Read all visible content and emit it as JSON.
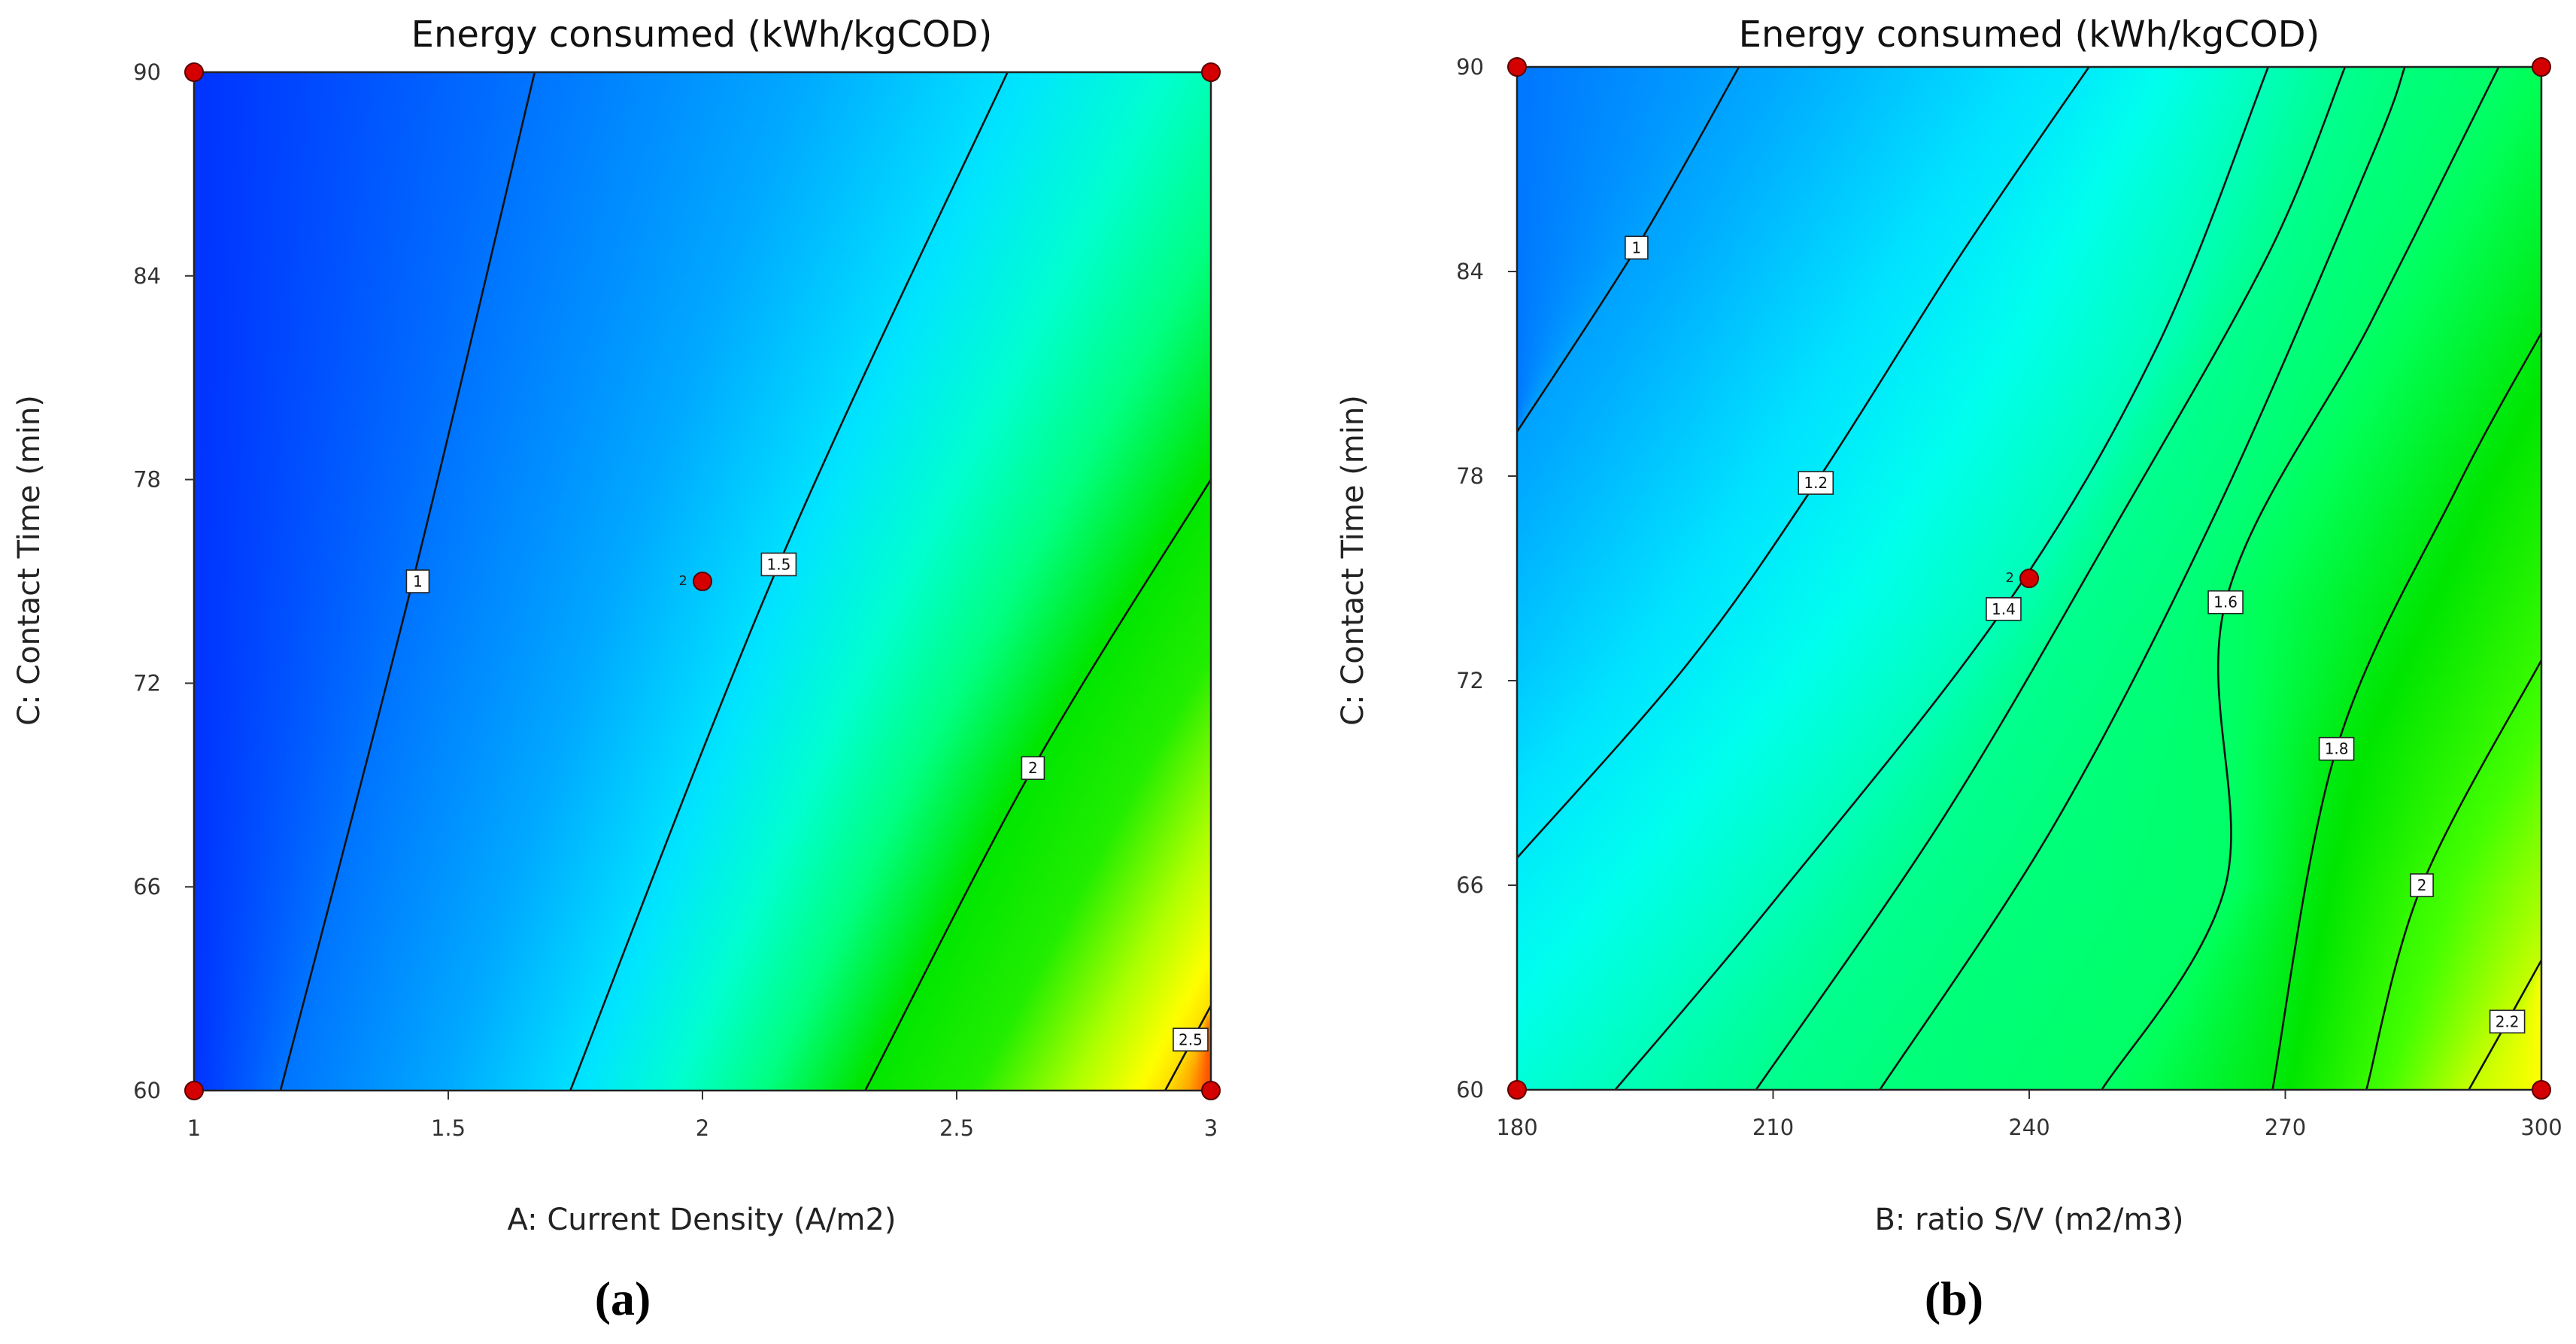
{
  "figure": {
    "panels": [
      {
        "label": "(a)"
      },
      {
        "label": "(b)"
      }
    ]
  },
  "chart_data": [
    {
      "type": "contour",
      "panel": "(a)",
      "title": "Energy consumed (kWh/kgCOD)",
      "xlabel": "A: Current Density (A/m2)",
      "ylabel": "C: Contact Time (min)",
      "xlim": [
        1,
        3
      ],
      "ylim": [
        60,
        90
      ],
      "xticks": [
        "1",
        "1.5",
        "2",
        "2.5",
        "3"
      ],
      "xtick_values": [
        1,
        1.5,
        2,
        2.5,
        3
      ],
      "yticks": [
        "60",
        "66",
        "72",
        "78",
        "84",
        "90"
      ],
      "ytick_values": [
        60,
        66,
        72,
        78,
        84,
        90
      ],
      "colormap_range": [
        0.7,
        2.65
      ],
      "colormap": [
        {
          "v": 0.0,
          "c": "#0033ff"
        },
        {
          "v": 0.16,
          "c": "#0077ff"
        },
        {
          "v": 0.3,
          "c": "#00aaff"
        },
        {
          "v": 0.42,
          "c": "#00e5ff"
        },
        {
          "v": 0.5,
          "c": "#00ffd0"
        },
        {
          "v": 0.58,
          "c": "#00ff80"
        },
        {
          "v": 0.66,
          "c": "#00e600"
        },
        {
          "v": 0.76,
          "c": "#22ee00"
        },
        {
          "v": 0.84,
          "c": "#aaff00"
        },
        {
          "v": 0.9,
          "c": "#ffff00"
        },
        {
          "v": 0.96,
          "c": "#ffaa00"
        },
        {
          "v": 1.0,
          "c": "#ff4400"
        }
      ],
      "contours": [
        {
          "level": 1,
          "label": "1",
          "points": [
            [
              1.17,
              60
            ],
            [
              1.43,
              75
            ],
            [
              1.67,
              90
            ]
          ],
          "label_at": [
            1.44,
            75
          ]
        },
        {
          "level": 1.5,
          "label": "1.5",
          "points": [
            [
              1.74,
              60
            ],
            [
              2.15,
              75.5
            ],
            [
              2.6,
              90
            ]
          ],
          "label_at": [
            2.15,
            75.5
          ]
        },
        {
          "level": 2,
          "label": "2",
          "points": [
            [
              2.32,
              60
            ],
            [
              2.65,
              69.5
            ],
            [
              3.0,
              78
            ]
          ],
          "label_at": [
            2.65,
            69.5
          ]
        },
        {
          "level": 2.5,
          "label": "2.5",
          "points": [
            [
              2.91,
              60
            ],
            [
              3.0,
              62.5
            ]
          ],
          "label_at": [
            2.96,
            61.5
          ]
        }
      ],
      "design_points": [
        [
          1,
          60
        ],
        [
          1,
          90
        ],
        [
          3,
          60
        ],
        [
          3,
          90
        ],
        [
          2,
          75
        ]
      ],
      "center_point": {
        "x": 2,
        "y": 75,
        "count_label": "2"
      }
    },
    {
      "type": "contour",
      "panel": "(b)",
      "title": "Energy consumed (kWh/kgCOD)",
      "xlabel": "B: ratio S/V (m2/m3)",
      "ylabel": "C: Contact Time (min)",
      "xlim": [
        180,
        300
      ],
      "ylim": [
        60,
        90
      ],
      "xticks": [
        "180",
        "210",
        "240",
        "270",
        "300"
      ],
      "xtick_values": [
        180,
        210,
        240,
        270,
        300
      ],
      "yticks": [
        "60",
        "66",
        "72",
        "78",
        "84",
        "90"
      ],
      "ytick_values": [
        60,
        66,
        72,
        78,
        84,
        90
      ],
      "colormap_range": [
        0.85,
        2.3
      ],
      "colormap": [
        {
          "v": 0.0,
          "c": "#0077ff"
        },
        {
          "v": 0.12,
          "c": "#00aaff"
        },
        {
          "v": 0.22,
          "c": "#00e5ff"
        },
        {
          "v": 0.3,
          "c": "#00ffee"
        },
        {
          "v": 0.42,
          "c": "#00ffa0"
        },
        {
          "v": 0.55,
          "c": "#00ff55"
        },
        {
          "v": 0.68,
          "c": "#00e600"
        },
        {
          "v": 0.82,
          "c": "#44ff00"
        },
        {
          "v": 0.92,
          "c": "#bbff00"
        },
        {
          "v": 1.0,
          "c": "#ffff00"
        }
      ],
      "contours": [
        {
          "level": 1,
          "label": "1",
          "points": [
            [
              180,
              79.3
            ],
            [
              194,
              84.7
            ],
            [
              206,
              90
            ]
          ],
          "label_at": [
            194,
            84.7
          ]
        },
        {
          "level": 1.2,
          "label": "1.2",
          "points": [
            [
              180,
              66.8
            ],
            [
              200,
              72.5
            ],
            [
              215,
              77.8
            ],
            [
              232,
              84.5
            ],
            [
              247,
              90
            ]
          ],
          "label_at": [
            215,
            77.8
          ]
        },
        {
          "level": 1.4,
          "label": "1.4",
          "points": [
            [
              191.5,
              60
            ],
            [
              210,
              65.5
            ],
            [
              237,
              74.1
            ],
            [
              255,
              81.8
            ],
            [
              268,
              90
            ]
          ],
          "label_at": [
            237,
            74.1
          ]
        },
        {
          "level": 1.5,
          "label": "",
          "points": [
            [
              208,
              60
            ],
            [
              230,
              68
            ],
            [
              250,
              76.5
            ],
            [
              268,
              84.5
            ],
            [
              277,
              90
            ]
          ],
          "label_at": null
        },
        {
          "level": 1.55,
          "label": "",
          "points": [
            [
              222.5,
              60
            ],
            [
              243,
              67.8
            ],
            [
              262,
              77
            ],
            [
              280,
              87.3
            ],
            [
              284,
              90
            ]
          ],
          "label_at": null
        },
        {
          "level": 1.6,
          "label": "1.6",
          "points": [
            [
              248.5,
              60
            ],
            [
              263,
              66
            ],
            [
              263,
              74.3
            ],
            [
              280,
              82.5
            ],
            [
              295,
              90
            ]
          ],
          "label_at": [
            263,
            74.3
          ]
        },
        {
          "level": 1.8,
          "label": "1.8",
          "points": [
            [
              268.5,
              60
            ],
            [
              276,
              70
            ],
            [
              290,
              77.6
            ],
            [
              300,
              82.2
            ]
          ],
          "label_at": [
            276,
            70
          ]
        },
        {
          "level": 2,
          "label": "2",
          "points": [
            [
              279.5,
              60
            ],
            [
              286,
              66
            ],
            [
              300,
              72.6
            ]
          ],
          "label_at": [
            286,
            66
          ]
        },
        {
          "level": 2.2,
          "label": "2.2",
          "points": [
            [
              291.5,
              60
            ],
            [
              296,
              62
            ],
            [
              300,
              63.8
            ]
          ],
          "label_at": [
            296,
            62
          ]
        }
      ],
      "design_points": [
        [
          180,
          60
        ],
        [
          180,
          90
        ],
        [
          300,
          60
        ],
        [
          300,
          90
        ],
        [
          240,
          75
        ]
      ],
      "center_point": {
        "x": 240,
        "y": 75,
        "count_label": "2"
      }
    }
  ]
}
